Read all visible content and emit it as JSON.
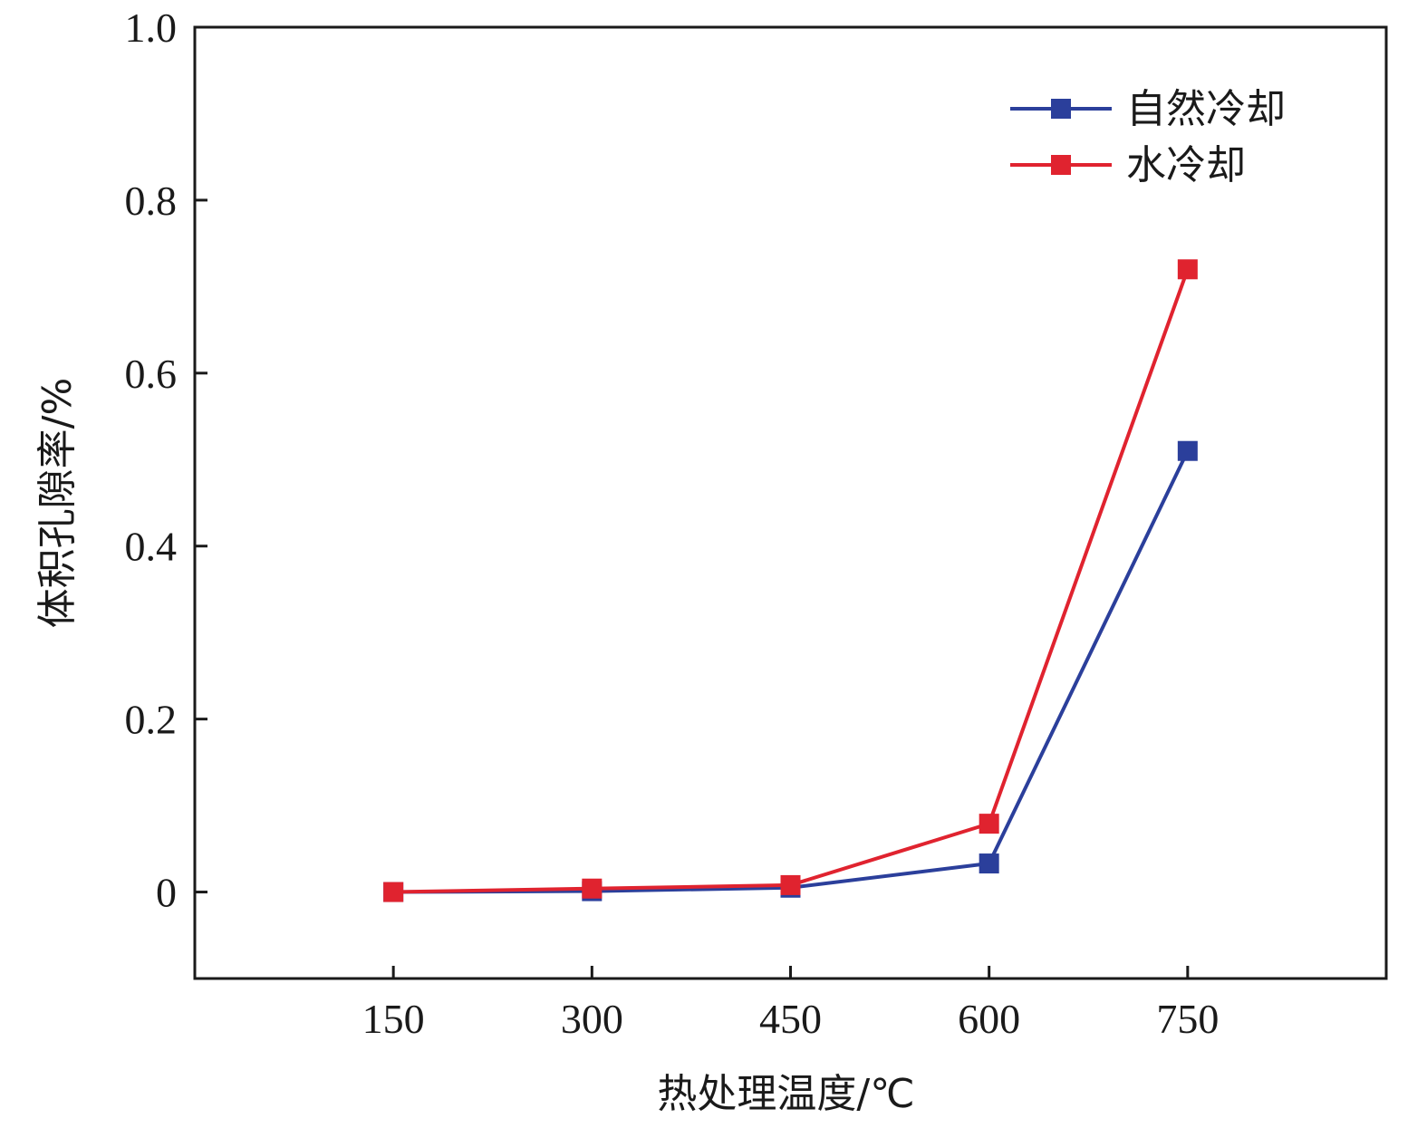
{
  "chart_data": {
    "type": "line",
    "title": "",
    "xlabel": "热处理温度/℃",
    "ylabel": "体积孔隙率/%",
    "x": [
      150,
      300,
      450,
      600,
      750
    ],
    "x_tick_labels": [
      "150",
      "300",
      "450",
      "600",
      "750"
    ],
    "xlim": [
      0,
      900
    ],
    "ylim": [
      -0.1,
      1.0
    ],
    "y_ticks": [
      0,
      0.2,
      0.4,
      0.6,
      0.8,
      1.0
    ],
    "y_tick_labels": [
      "0",
      "0.2",
      "0.4",
      "0.6",
      "0.8",
      "1.0"
    ],
    "grid": false,
    "legend_position": "top-right",
    "series": [
      {
        "name": "自然冷却",
        "color": "#2b3f9b",
        "values": [
          0.0,
          0.001,
          0.005,
          0.033,
          0.51
        ]
      },
      {
        "name": "水冷却",
        "color": "#e0232f",
        "values": [
          0.0,
          0.004,
          0.008,
          0.079,
          0.72
        ]
      }
    ]
  }
}
